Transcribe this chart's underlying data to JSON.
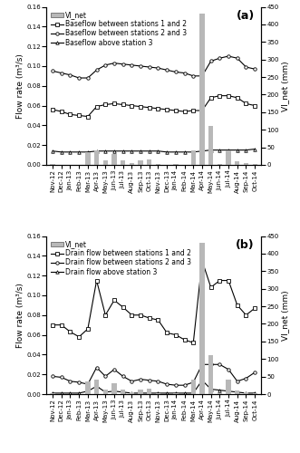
{
  "x_labels": [
    "Nov-12",
    "Dec-12",
    "Jan-13",
    "Feb-13",
    "Mar-13",
    "Apr-13",
    "May-13",
    "Jun-13",
    "Jul-13",
    "Aug-13",
    "Sep-13",
    "Oct-13",
    "Nov-13",
    "Dec-13",
    "Jan-14",
    "Feb-14",
    "Mar-14",
    "Apr-14",
    "May-14",
    "Jun-14",
    "Jul-14",
    "Aug-14",
    "Sep-14",
    "Oct-14"
  ],
  "vi_net_a": [
    3,
    1,
    0,
    0,
    37,
    42,
    14,
    30,
    12,
    6,
    13,
    15,
    2,
    0,
    3,
    0,
    42,
    430,
    110,
    3,
    40,
    10,
    5,
    2
  ],
  "base_1_2": [
    0.056,
    0.054,
    0.051,
    0.05,
    0.049,
    0.059,
    0.061,
    0.062,
    0.061,
    0.06,
    0.059,
    0.058,
    0.057,
    0.056,
    0.055,
    0.054,
    0.055,
    0.055,
    0.068,
    0.07,
    0.07,
    0.068,
    0.062,
    0.06
  ],
  "base_2_3": [
    0.095,
    0.093,
    0.091,
    0.088,
    0.088,
    0.096,
    0.101,
    0.103,
    0.102,
    0.101,
    0.1,
    0.099,
    0.098,
    0.096,
    0.094,
    0.093,
    0.09,
    0.09,
    0.105,
    0.108,
    0.11,
    0.108,
    0.099,
    0.097
  ],
  "base_3": [
    0.014,
    0.013,
    0.013,
    0.013,
    0.013,
    0.014,
    0.014,
    0.014,
    0.014,
    0.014,
    0.014,
    0.014,
    0.014,
    0.013,
    0.013,
    0.013,
    0.013,
    0.014,
    0.015,
    0.015,
    0.015,
    0.015,
    0.015,
    0.016
  ],
  "vi_net_b": [
    3,
    1,
    0,
    0,
    37,
    42,
    14,
    30,
    12,
    6,
    13,
    15,
    2,
    0,
    3,
    0,
    42,
    430,
    110,
    3,
    40,
    10,
    5,
    2
  ],
  "drain_1_2": [
    0.07,
    0.07,
    0.063,
    0.058,
    0.066,
    0.115,
    0.08,
    0.095,
    0.088,
    0.08,
    0.08,
    0.077,
    0.075,
    0.062,
    0.06,
    0.055,
    0.052,
    0.135,
    0.108,
    0.115,
    0.115,
    0.09,
    0.08,
    0.087
  ],
  "drain_2_3": [
    0.018,
    0.017,
    0.013,
    0.012,
    0.01,
    0.027,
    0.018,
    0.025,
    0.018,
    0.013,
    0.015,
    0.014,
    0.013,
    0.01,
    0.009,
    0.009,
    0.012,
    0.03,
    0.03,
    0.03,
    0.025,
    0.013,
    0.016,
    0.022
  ],
  "drain_3": [
    0.001,
    0.001,
    0.001,
    0.001,
    0.003,
    0.008,
    0.002,
    0.003,
    0.002,
    0.001,
    0.001,
    0.001,
    0.001,
    0.001,
    0.001,
    0.001,
    0.001,
    0.014,
    0.005,
    0.004,
    0.003,
    0.002,
    0.001,
    0.001
  ],
  "ylim_flow": [
    0.0,
    0.16
  ],
  "ylim_vi": [
    0,
    450
  ],
  "bar_color": "#b8b8b8",
  "tick_fontsize": 5.0,
  "label_fontsize": 6.5,
  "legend_fontsize": 5.5
}
